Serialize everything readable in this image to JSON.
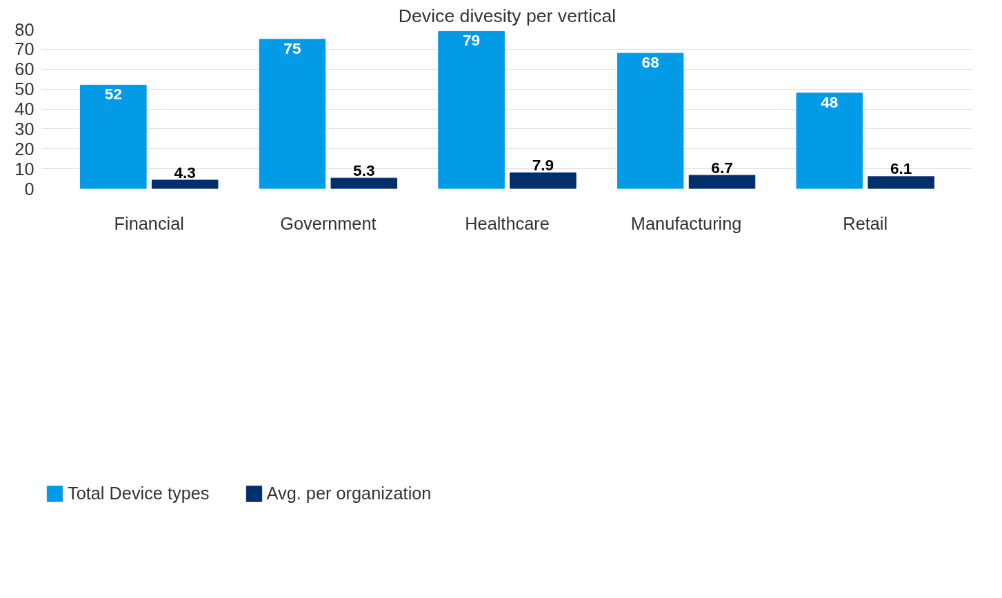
{
  "chart_data": {
    "type": "bar",
    "title": "Device divesity per vertical",
    "categories": [
      "Financial",
      "Government",
      "Healthcare",
      "Manufacturing",
      "Retail"
    ],
    "series": [
      {
        "name": "Total Device types",
        "color": "#039be5",
        "values": [
          52,
          75,
          79,
          68,
          48
        ]
      },
      {
        "name": "Avg. per organization",
        "color": "#002f6c",
        "values": [
          4.3,
          5.3,
          7.9,
          6.7,
          6.1
        ]
      }
    ],
    "ylim": [
      0,
      80
    ],
    "yticks": [
      0,
      10,
      20,
      30,
      40,
      50,
      60,
      70,
      80
    ],
    "grid": "y",
    "legend": "bottom left",
    "data_labels": true
  }
}
